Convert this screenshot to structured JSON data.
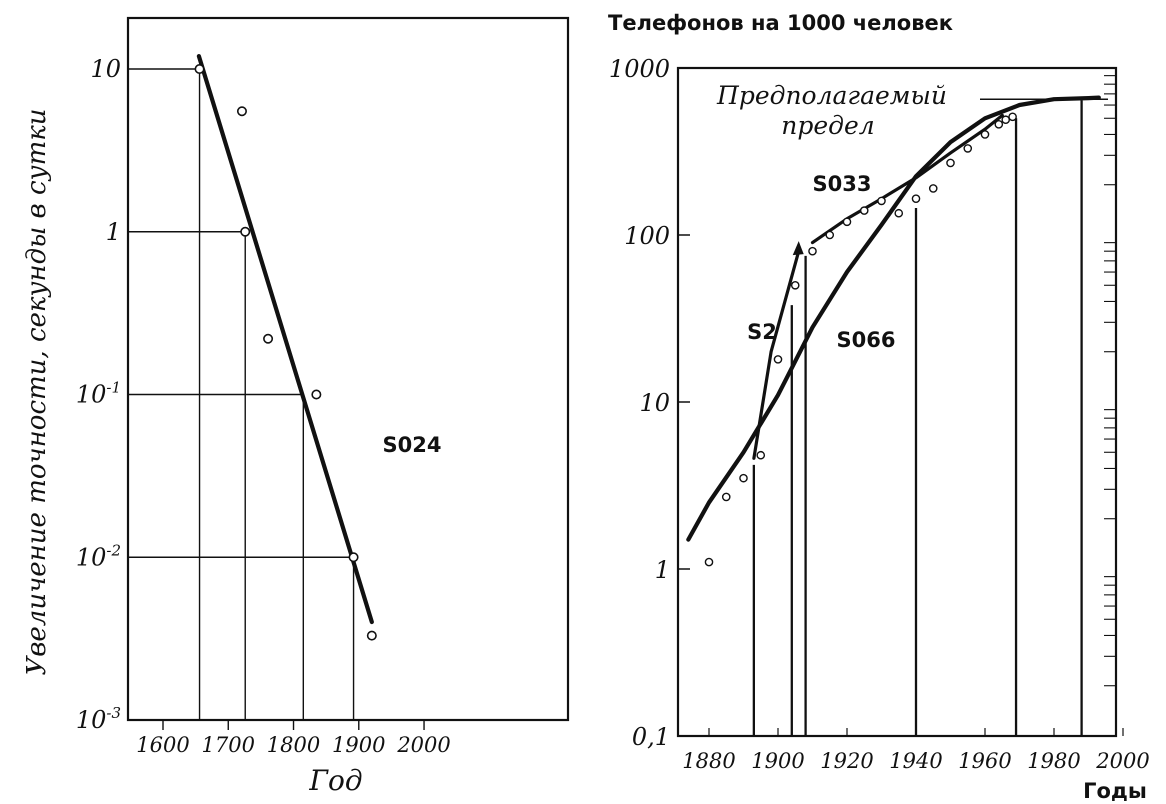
{
  "chart_data": [
    {
      "type": "scatter",
      "ylabel": "Увеличение точности, секунды в сутки",
      "xlabel": "Год",
      "xlim": [
        1550,
        2100
      ],
      "ylim": [
        0.001,
        10
      ],
      "yscale": "log",
      "x_ticks": [
        "1600",
        "1700",
        "1800",
        "1900",
        "2000"
      ],
      "y_ticks": [
        {
          "base": "10",
          "exp": "-3"
        },
        {
          "base": "10",
          "exp": "-2"
        },
        {
          "base": "10",
          "exp": "-1"
        },
        {
          "base": "1",
          "exp": ""
        },
        {
          "base": "10",
          "exp": ""
        }
      ],
      "points": [
        {
          "x": 1656,
          "y": 10
        },
        {
          "x": 1721,
          "y": 5.5
        },
        {
          "x": 1726,
          "y": 1
        },
        {
          "x": 1761,
          "y": 0.22
        },
        {
          "x": 1835,
          "y": 0.1
        },
        {
          "x": 1892,
          "y": 0.01
        },
        {
          "x": 1920,
          "y": 0.0033
        }
      ],
      "trend": {
        "from": [
          1655,
          12
        ],
        "to": [
          1920,
          0.004
        ]
      },
      "labels": [
        {
          "text": "S024",
          "x": 1850,
          "y": 0.05
        }
      ]
    },
    {
      "type": "scatter",
      "title": "Телефонов на 1000 человек",
      "xlabel": "Годы",
      "xlim": [
        1870,
        2000
      ],
      "ylim": [
        0.1,
        1000
      ],
      "yscale": "log",
      "x_ticks": [
        "1880",
        "1900",
        "1920",
        "1940",
        "1960",
        "1980",
        "2000"
      ],
      "y_ticks": [
        "0,1",
        "1",
        "10",
        "100",
        "1000"
      ],
      "points": [
        {
          "x": 1880,
          "y": 1.1
        },
        {
          "x": 1885,
          "y": 2.7
        },
        {
          "x": 1890,
          "y": 3.5
        },
        {
          "x": 1895,
          "y": 4.8
        },
        {
          "x": 1900,
          "y": 18
        },
        {
          "x": 1905,
          "y": 50
        },
        {
          "x": 1910,
          "y": 80
        },
        {
          "x": 1915,
          "y": 100
        },
        {
          "x": 1920,
          "y": 120
        },
        {
          "x": 1925,
          "y": 140
        },
        {
          "x": 1930,
          "y": 160
        },
        {
          "x": 1935,
          "y": 135
        },
        {
          "x": 1940,
          "y": 165
        },
        {
          "x": 1945,
          "y": 190
        },
        {
          "x": 1950,
          "y": 270
        },
        {
          "x": 1955,
          "y": 330
        },
        {
          "x": 1960,
          "y": 400
        },
        {
          "x": 1964,
          "y": 460
        },
        {
          "x": 1966,
          "y": 490
        },
        {
          "x": 1968,
          "y": 510
        }
      ],
      "curves": [
        {
          "name": "S066",
          "points": [
            [
              1874,
              1.5
            ],
            [
              1880,
              2.5
            ],
            [
              1890,
              5
            ],
            [
              1900,
              11
            ],
            [
              1910,
              28
            ],
            [
              1920,
              60
            ],
            [
              1930,
              115
            ],
            [
              1940,
              225
            ],
            [
              1950,
              360
            ],
            [
              1960,
              500
            ],
            [
              1970,
              600
            ],
            [
              1980,
              650
            ],
            [
              1990,
              660
            ],
            [
              1993,
              665
            ]
          ]
        },
        {
          "name": "S033",
          "points": [
            [
              1910,
              90
            ],
            [
              1920,
              125
            ],
            [
              1930,
              165
            ],
            [
              1940,
              220
            ],
            [
              1950,
              310
            ],
            [
              1960,
              430
            ],
            [
              1965,
              520
            ]
          ]
        },
        {
          "name": "S2",
          "points": [
            [
              1893,
              4.6
            ],
            [
              1898,
              20
            ],
            [
              1906,
              80
            ]
          ]
        }
      ],
      "annotations": [
        {
          "text": "Предполагаемый",
          "x": 1947,
          "y": 700
        },
        {
          "text": "предел",
          "x": 1947,
          "y": 420
        },
        {
          "text": "S033",
          "x": 1922,
          "y": 195
        },
        {
          "text": "S2",
          "x": 1895,
          "y": 40
        },
        {
          "text": "S066",
          "x": 1924,
          "y": 20
        }
      ],
      "limit_value": 650
    }
  ]
}
